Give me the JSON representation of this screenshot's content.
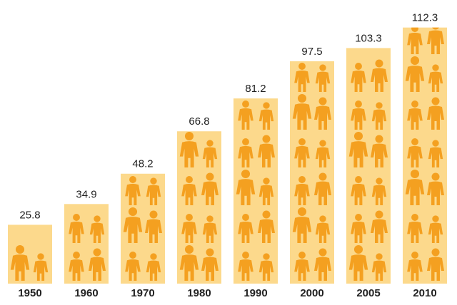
{
  "chart_data": {
    "type": "pictogram-bar",
    "categories": [
      "1950",
      "1960",
      "1970",
      "1980",
      "1990",
      "2000",
      "2005",
      "2010"
    ],
    "values": [
      25.8,
      34.9,
      48.2,
      66.8,
      81.2,
      97.5,
      103.3,
      112.3
    ],
    "color": "#fcd98c",
    "icon_color": "#f4a020"
  }
}
